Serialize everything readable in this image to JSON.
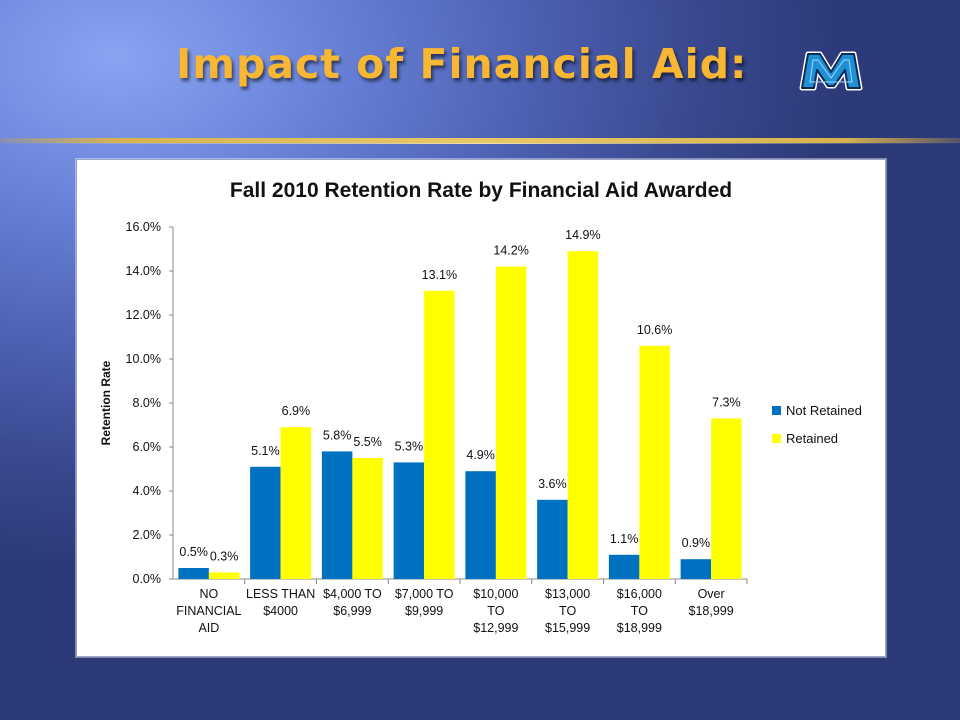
{
  "slide": {
    "title": "Impact of Financial Aid:",
    "logo_letter": "M",
    "colors": {
      "title": "#f7b733",
      "rule": "#d8b24f"
    }
  },
  "chart_data": {
    "type": "bar",
    "title": "Fall 2010 Retention Rate by Financial Aid Awarded",
    "ylabel": "Retention Rate",
    "xlabel": "",
    "ylim": [
      0,
      16
    ],
    "yticks": [
      "0.0%",
      "2.0%",
      "4.0%",
      "6.0%",
      "8.0%",
      "10.0%",
      "12.0%",
      "14.0%",
      "16.0%"
    ],
    "categories": [
      [
        "NO",
        "FINANCIAL",
        "AID"
      ],
      [
        "LESS THAN",
        "$4000"
      ],
      [
        "$4,000 TO",
        "$6,999"
      ],
      [
        "$7,000 TO",
        "$9,999"
      ],
      [
        "$10,000",
        "TO",
        "$12,999"
      ],
      [
        "$13,000",
        "TO",
        "$15,999"
      ],
      [
        "$16,000",
        "TO",
        "$18,999"
      ],
      [
        "Over",
        "$18,999"
      ]
    ],
    "series": [
      {
        "name": "Not Retained",
        "color": "#0070c0",
        "values": [
          0.5,
          5.1,
          5.8,
          5.3,
          4.9,
          3.6,
          1.1,
          0.9
        ],
        "labels": [
          "0.5%",
          "5.1%",
          "5.8%",
          "5.3%",
          "4.9%",
          "3.6%",
          "1.1%",
          "0.9%"
        ]
      },
      {
        "name": "Retained",
        "color": "#ffff00",
        "values": [
          0.3,
          6.9,
          5.5,
          13.1,
          14.2,
          14.9,
          10.6,
          7.3
        ],
        "labels": [
          "0.3%",
          "6.9%",
          "5.5%",
          "13.1%",
          "14.2%",
          "14.9%",
          "10.6%",
          "7.3%"
        ]
      }
    ],
    "grid": false,
    "legend_position": "right"
  }
}
